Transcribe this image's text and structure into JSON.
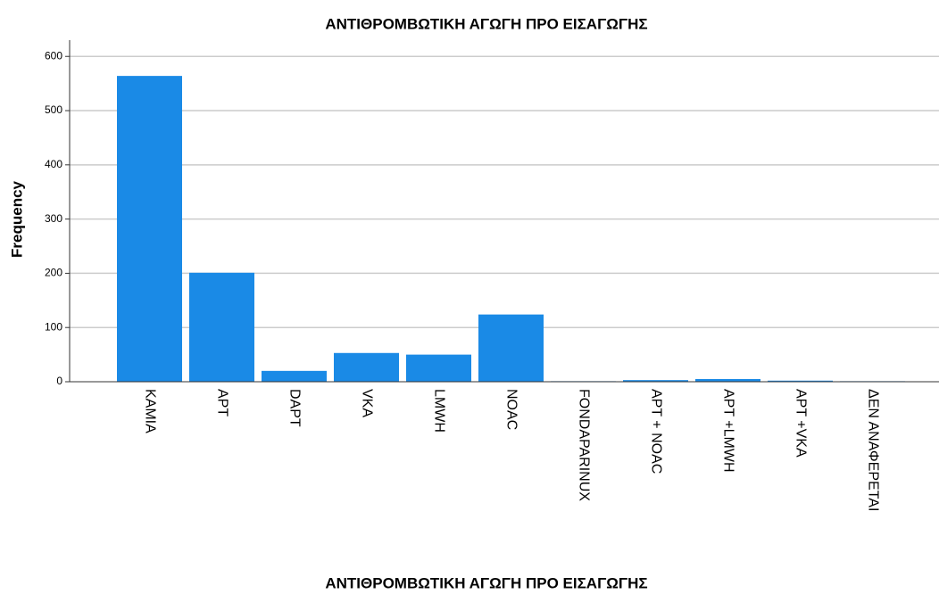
{
  "chart_data": {
    "type": "bar",
    "title": "ΑΝΤΙΘΡΟΜΒΩΤΙΚΗ ΑΓΩΓΗ ΠΡΟ ΕΙΣΑΓΩΓΗΣ",
    "x_label": "ΑΝΤΙΘΡΟΜΒΩΤΙΚΗ ΑΓΩΓΗ ΠΡΟ ΕΙΣΑΓΩΓΗΣ",
    "y_label": "Frequency",
    "categories": [
      "KAMIA",
      "APT",
      "DAPT",
      "VKA",
      "LMWH",
      "NOAC",
      "FONDAPARINUX",
      "APT + NOAC",
      "APT +LMWH",
      "APT +VKA",
      "ΔΕΝ ΑΝΑΦΕΡΕΤΑΙ"
    ],
    "values": [
      564,
      201,
      20,
      53,
      50,
      124,
      1,
      3,
      5,
      2,
      1
    ],
    "color": "#1a8ae6",
    "ylim": [
      0,
      630
    ],
    "yticks": [
      0,
      100,
      200,
      300,
      400,
      500,
      600
    ],
    "grid": true
  }
}
